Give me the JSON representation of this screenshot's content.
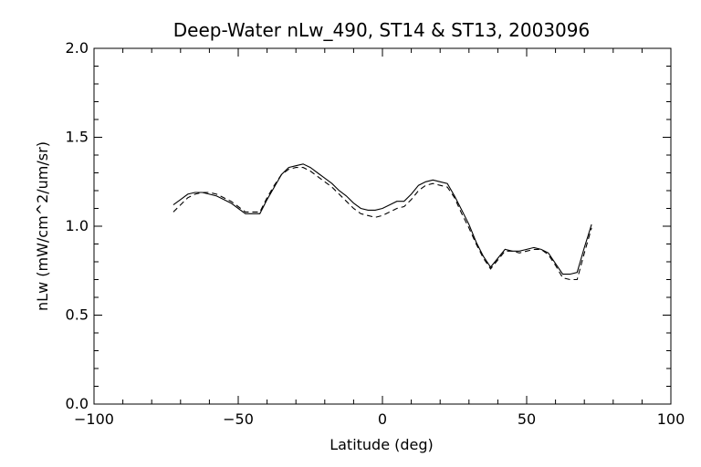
{
  "chart_data": {
    "type": "line",
    "title": "Deep-Water nLw_490, ST14 & ST13, 2003096",
    "xlabel": "Latitude (deg)",
    "ylabel": "nLw (mW/cm^2/um/sr)",
    "xlim": [
      -100,
      100
    ],
    "ylim": [
      0.0,
      2.0
    ],
    "xticks": [
      -100,
      -50,
      0,
      50,
      100
    ],
    "xtick_labels": [
      "−100",
      "−50",
      "0",
      "50",
      "100"
    ],
    "yticks": [
      0.0,
      0.5,
      1.0,
      1.5,
      2.0
    ],
    "ytick_labels": [
      "0.0",
      "0.5",
      "1.0",
      "1.5",
      "2.0"
    ],
    "grid": false,
    "series": [
      {
        "style": "solid",
        "x": [
          -72.5,
          -70,
          -67.5,
          -65,
          -62.5,
          -60,
          -57.5,
          -55,
          -52.5,
          -50,
          -47.5,
          -45,
          -42.5,
          -40,
          -37.5,
          -35,
          -32.5,
          -30,
          -27.5,
          -25,
          -22.5,
          -20,
          -17.5,
          -15,
          -12.5,
          -10,
          -7.5,
          -5,
          -2.5,
          0,
          2.5,
          5,
          7.5,
          10,
          12.5,
          15,
          17.5,
          20,
          22.5,
          25,
          27.5,
          30,
          32.5,
          35,
          37.5,
          40,
          42.5,
          45,
          47.5,
          50,
          52.5,
          55,
          57.5,
          60,
          62.5,
          65,
          67.5,
          70,
          72.5
        ],
        "y": [
          1.12,
          1.15,
          1.18,
          1.19,
          1.19,
          1.18,
          1.17,
          1.15,
          1.13,
          1.1,
          1.07,
          1.07,
          1.07,
          1.15,
          1.22,
          1.29,
          1.33,
          1.34,
          1.35,
          1.33,
          1.3,
          1.27,
          1.24,
          1.2,
          1.17,
          1.13,
          1.1,
          1.09,
          1.09,
          1.1,
          1.12,
          1.14,
          1.14,
          1.18,
          1.23,
          1.25,
          1.26,
          1.25,
          1.24,
          1.17,
          1.09,
          1.01,
          0.91,
          0.83,
          0.77,
          0.82,
          0.87,
          0.86,
          0.86,
          0.87,
          0.88,
          0.87,
          0.85,
          0.79,
          0.73,
          0.73,
          0.74,
          0.88,
          1.01
        ]
      },
      {
        "style": "dashed",
        "x": [
          -72.5,
          -70,
          -67.5,
          -65,
          -62.5,
          -60,
          -57.5,
          -55,
          -52.5,
          -50,
          -47.5,
          -45,
          -42.5,
          -40,
          -37.5,
          -35,
          -32.5,
          -30,
          -27.5,
          -25,
          -22.5,
          -20,
          -17.5,
          -15,
          -12.5,
          -10,
          -7.5,
          -5,
          -2.5,
          0,
          2.5,
          5,
          7.5,
          10,
          12.5,
          15,
          17.5,
          20,
          22.5,
          25,
          27.5,
          30,
          32.5,
          35,
          37.5,
          40,
          42.5,
          45,
          47.5,
          50,
          52.5,
          55,
          57.5,
          60,
          62.5,
          65,
          67.5,
          70,
          72.5
        ],
        "y": [
          1.08,
          1.12,
          1.16,
          1.18,
          1.19,
          1.19,
          1.18,
          1.16,
          1.14,
          1.11,
          1.08,
          1.08,
          1.08,
          1.16,
          1.23,
          1.29,
          1.32,
          1.33,
          1.33,
          1.31,
          1.28,
          1.25,
          1.22,
          1.18,
          1.14,
          1.1,
          1.07,
          1.06,
          1.05,
          1.06,
          1.08,
          1.1,
          1.11,
          1.15,
          1.2,
          1.23,
          1.24,
          1.23,
          1.22,
          1.16,
          1.07,
          0.99,
          0.9,
          0.82,
          0.76,
          0.81,
          0.86,
          0.86,
          0.85,
          0.86,
          0.87,
          0.87,
          0.84,
          0.78,
          0.71,
          0.7,
          0.7,
          0.85,
          0.99
        ]
      }
    ]
  }
}
